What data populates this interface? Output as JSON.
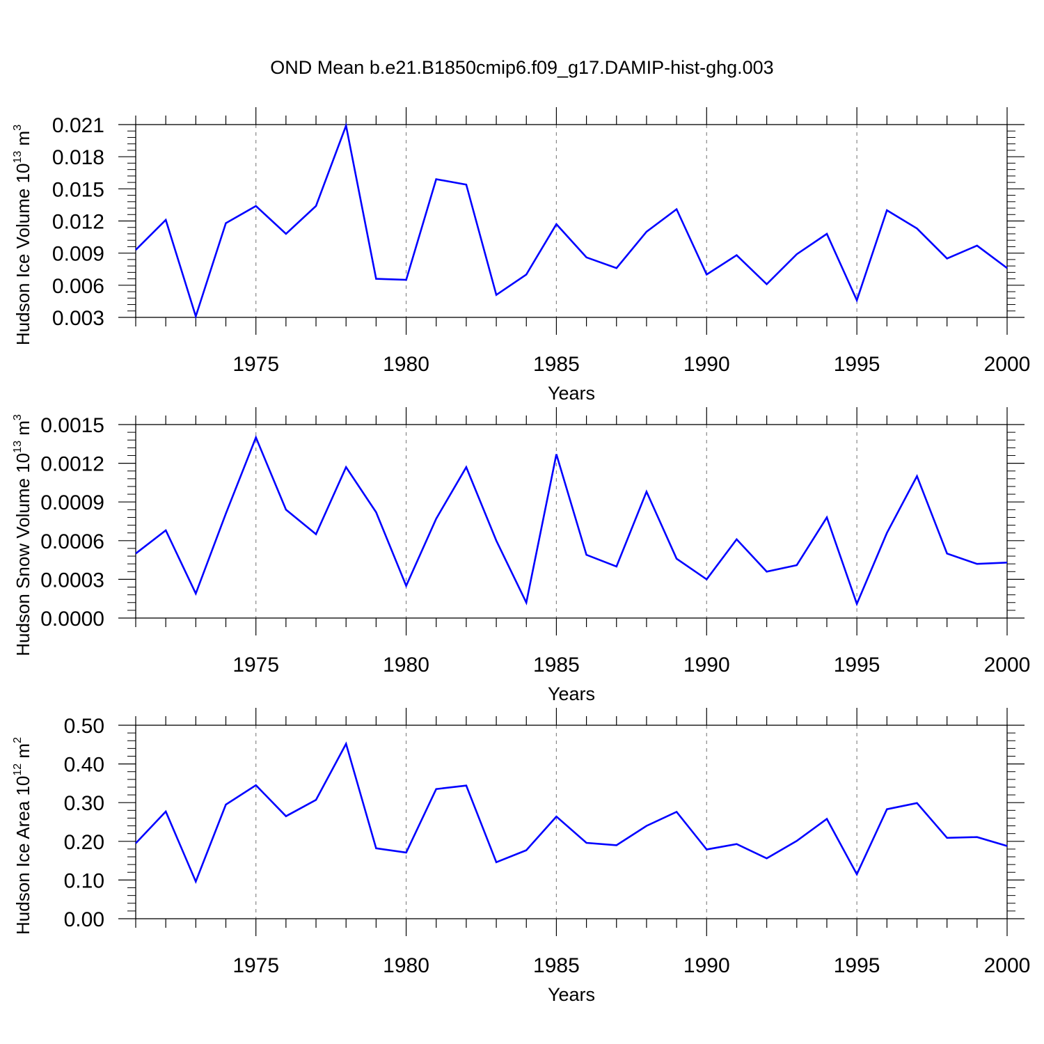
{
  "title": "OND Mean b.e21.B1850cmip6.f09_g17.DAMIP-hist-ghg.003",
  "chart_data": [
    {
      "type": "line",
      "ylabel": {
        "main": "Hudson Ice Volume 10",
        "exp": "13",
        "unit": " m",
        "unit_exp": "3"
      },
      "xlabel": "Years",
      "xlim": [
        1971,
        2000
      ],
      "ylim": [
        0.003,
        0.021
      ],
      "yticks": [
        "0.003",
        "0.006",
        "0.009",
        "0.012",
        "0.015",
        "0.018",
        "0.021"
      ],
      "xticks": [
        "1975",
        "1980",
        "1985",
        "1990",
        "1995",
        "2000"
      ],
      "grid": "vertical dashed at major x ticks",
      "color": "#0000ff",
      "x": [
        1971,
        1972,
        1973,
        1974,
        1975,
        1976,
        1977,
        1978,
        1979,
        1980,
        1981,
        1982,
        1983,
        1984,
        1985,
        1986,
        1987,
        1988,
        1989,
        1990,
        1991,
        1992,
        1993,
        1994,
        1995,
        1996,
        1997,
        1998,
        1999,
        2000
      ],
      "values": [
        0.0093,
        0.0121,
        0.0031,
        0.0118,
        0.0134,
        0.0108,
        0.0134,
        0.0209,
        0.0066,
        0.0065,
        0.0159,
        0.0154,
        0.0051,
        0.007,
        0.0117,
        0.0086,
        0.0076,
        0.011,
        0.0131,
        0.007,
        0.0088,
        0.0061,
        0.0089,
        0.0108,
        0.0046,
        0.013,
        0.0113,
        0.0085,
        0.0097,
        0.0076
      ]
    },
    {
      "type": "line",
      "ylabel": {
        "main": "Hudson Snow Volume 10",
        "exp": "13",
        "unit": " m",
        "unit_exp": "3"
      },
      "xlabel": "Years",
      "xlim": [
        1971,
        2000
      ],
      "ylim": [
        0.0,
        0.0015
      ],
      "yticks": [
        "0.0000",
        "0.0003",
        "0.0006",
        "0.0009",
        "0.0012",
        "0.0015"
      ],
      "xticks": [
        "1975",
        "1980",
        "1985",
        "1990",
        "1995",
        "2000"
      ],
      "grid": "vertical dashed at major x ticks",
      "color": "#0000ff",
      "x": [
        1971,
        1972,
        1973,
        1974,
        1975,
        1976,
        1977,
        1978,
        1979,
        1980,
        1981,
        1982,
        1983,
        1984,
        1985,
        1986,
        1987,
        1988,
        1989,
        1990,
        1991,
        1992,
        1993,
        1994,
        1995,
        1996,
        1997,
        1998,
        1999,
        2000
      ],
      "values": [
        0.0005,
        0.00068,
        0.00019,
        0.00081,
        0.0014,
        0.00084,
        0.00065,
        0.00117,
        0.00082,
        0.00025,
        0.00077,
        0.00117,
        0.0006,
        0.00012,
        0.00127,
        0.00049,
        0.0004,
        0.00098,
        0.00046,
        0.0003,
        0.00061,
        0.00036,
        0.00041,
        0.00078,
        0.00011,
        0.00066,
        0.0011,
        0.0005,
        0.00042,
        0.00043
      ]
    },
    {
      "type": "line",
      "ylabel": {
        "main": "Hudson Ice Area 10",
        "exp": "12",
        "unit": " m",
        "unit_exp": "2"
      },
      "xlabel": "Years",
      "xlim": [
        1971,
        2000
      ],
      "ylim": [
        0.0,
        0.5
      ],
      "yticks": [
        "0.00",
        "0.10",
        "0.20",
        "0.30",
        "0.40",
        "0.50"
      ],
      "xticks": [
        "1975",
        "1980",
        "1985",
        "1990",
        "1995",
        "2000"
      ],
      "grid": "vertical dashed at major x ticks",
      "color": "#0000ff",
      "x": [
        1971,
        1972,
        1973,
        1974,
        1975,
        1976,
        1977,
        1978,
        1979,
        1980,
        1981,
        1982,
        1983,
        1984,
        1985,
        1986,
        1987,
        1988,
        1989,
        1990,
        1991,
        1992,
        1993,
        1994,
        1995,
        1996,
        1997,
        1998,
        1999,
        2000
      ],
      "values": [
        0.195,
        0.277,
        0.096,
        0.295,
        0.345,
        0.265,
        0.307,
        0.452,
        0.182,
        0.171,
        0.335,
        0.344,
        0.146,
        0.177,
        0.264,
        0.196,
        0.19,
        0.24,
        0.276,
        0.179,
        0.193,
        0.156,
        0.201,
        0.258,
        0.115,
        0.283,
        0.299,
        0.209,
        0.211,
        0.188
      ]
    }
  ]
}
